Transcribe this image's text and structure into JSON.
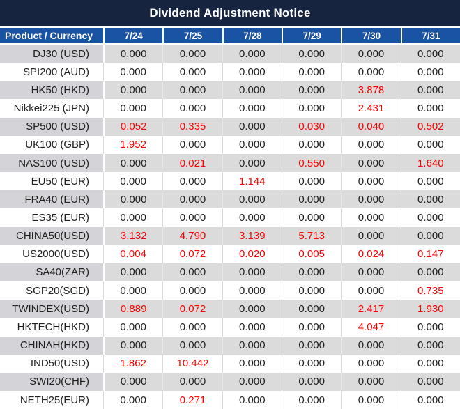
{
  "title": "Dividend Adjustment Notice",
  "columns": [
    "Product / Currency",
    "7/24",
    "7/25",
    "7/28",
    "7/29",
    "7/30",
    "7/31"
  ],
  "rows": [
    {
      "product": "DJ30 (USD)",
      "values": [
        "0.000",
        "0.000",
        "0.000",
        "0.000",
        "0.000",
        "0.000"
      ],
      "red": []
    },
    {
      "product": "SPI200 (AUD)",
      "values": [
        "0.000",
        "0.000",
        "0.000",
        "0.000",
        "0.000",
        "0.000"
      ],
      "red": []
    },
    {
      "product": "HK50 (HKD)",
      "values": [
        "0.000",
        "0.000",
        "0.000",
        "0.000",
        "3.878",
        "0.000"
      ],
      "red": [
        4
      ]
    },
    {
      "product": "Nikkei225 (JPN)",
      "values": [
        "0.000",
        "0.000",
        "0.000",
        "0.000",
        "2.431",
        "0.000"
      ],
      "red": [
        4
      ]
    },
    {
      "product": "SP500 (USD)",
      "values": [
        "0.052",
        "0.335",
        "0.000",
        "0.030",
        "0.040",
        "0.502"
      ],
      "red": [
        0,
        1,
        3,
        4,
        5
      ]
    },
    {
      "product": "UK100 (GBP)",
      "values": [
        "1.952",
        "0.000",
        "0.000",
        "0.000",
        "0.000",
        "0.000"
      ],
      "red": [
        0
      ]
    },
    {
      "product": "NAS100 (USD)",
      "values": [
        "0.000",
        "0.021",
        "0.000",
        "0.550",
        "0.000",
        "1.640"
      ],
      "red": [
        1,
        3,
        5
      ]
    },
    {
      "product": "EU50 (EUR)",
      "values": [
        "0.000",
        "0.000",
        "1.144",
        "0.000",
        "0.000",
        "0.000"
      ],
      "red": [
        2
      ]
    },
    {
      "product": "FRA40 (EUR)",
      "values": [
        "0.000",
        "0.000",
        "0.000",
        "0.000",
        "0.000",
        "0.000"
      ],
      "red": []
    },
    {
      "product": "ES35 (EUR)",
      "values": [
        "0.000",
        "0.000",
        "0.000",
        "0.000",
        "0.000",
        "0.000"
      ],
      "red": []
    },
    {
      "product": "CHINA50(USD)",
      "values": [
        "3.132",
        "4.790",
        "3.139",
        "5.713",
        "0.000",
        "0.000"
      ],
      "red": [
        0,
        1,
        2,
        3
      ]
    },
    {
      "product": "US2000(USD)",
      "values": [
        "0.004",
        "0.072",
        "0.020",
        "0.005",
        "0.024",
        "0.147"
      ],
      "red": [
        0,
        1,
        2,
        3,
        4,
        5
      ]
    },
    {
      "product": "SA40(ZAR)",
      "values": [
        "0.000",
        "0.000",
        "0.000",
        "0.000",
        "0.000",
        "0.000"
      ],
      "red": []
    },
    {
      "product": "SGP20(SGD)",
      "values": [
        "0.000",
        "0.000",
        "0.000",
        "0.000",
        "0.000",
        "0.735"
      ],
      "red": [
        5
      ]
    },
    {
      "product": "TWINDEX(USD)",
      "values": [
        "0.889",
        "0.072",
        "0.000",
        "0.000",
        "2.417",
        "1.930"
      ],
      "red": [
        0,
        1,
        4,
        5
      ]
    },
    {
      "product": "HKTECH(HKD)",
      "values": [
        "0.000",
        "0.000",
        "0.000",
        "0.000",
        "4.047",
        "0.000"
      ],
      "red": [
        4
      ]
    },
    {
      "product": "CHINAH(HKD)",
      "values": [
        "0.000",
        "0.000",
        "0.000",
        "0.000",
        "0.000",
        "0.000"
      ],
      "red": []
    },
    {
      "product": "IND50(USD)",
      "values": [
        "1.862",
        "10.442",
        "0.000",
        "0.000",
        "0.000",
        "0.000"
      ],
      "red": [
        0,
        1
      ]
    },
    {
      "product": "SWI20(CHF)",
      "values": [
        "0.000",
        "0.000",
        "0.000",
        "0.000",
        "0.000",
        "0.000"
      ],
      "red": []
    },
    {
      "product": "NETH25(EUR)",
      "values": [
        "0.000",
        "0.271",
        "0.000",
        "0.000",
        "0.000",
        "0.000"
      ],
      "red": [
        1
      ]
    }
  ],
  "colors": {
    "title_bar_bg": "#17243F",
    "header_bg": "#1A52A4",
    "row_gray": "#DBDBDB",
    "product_gray": "#D3D3D8",
    "negative_red": "#F80202",
    "text_dark": "#202020"
  }
}
